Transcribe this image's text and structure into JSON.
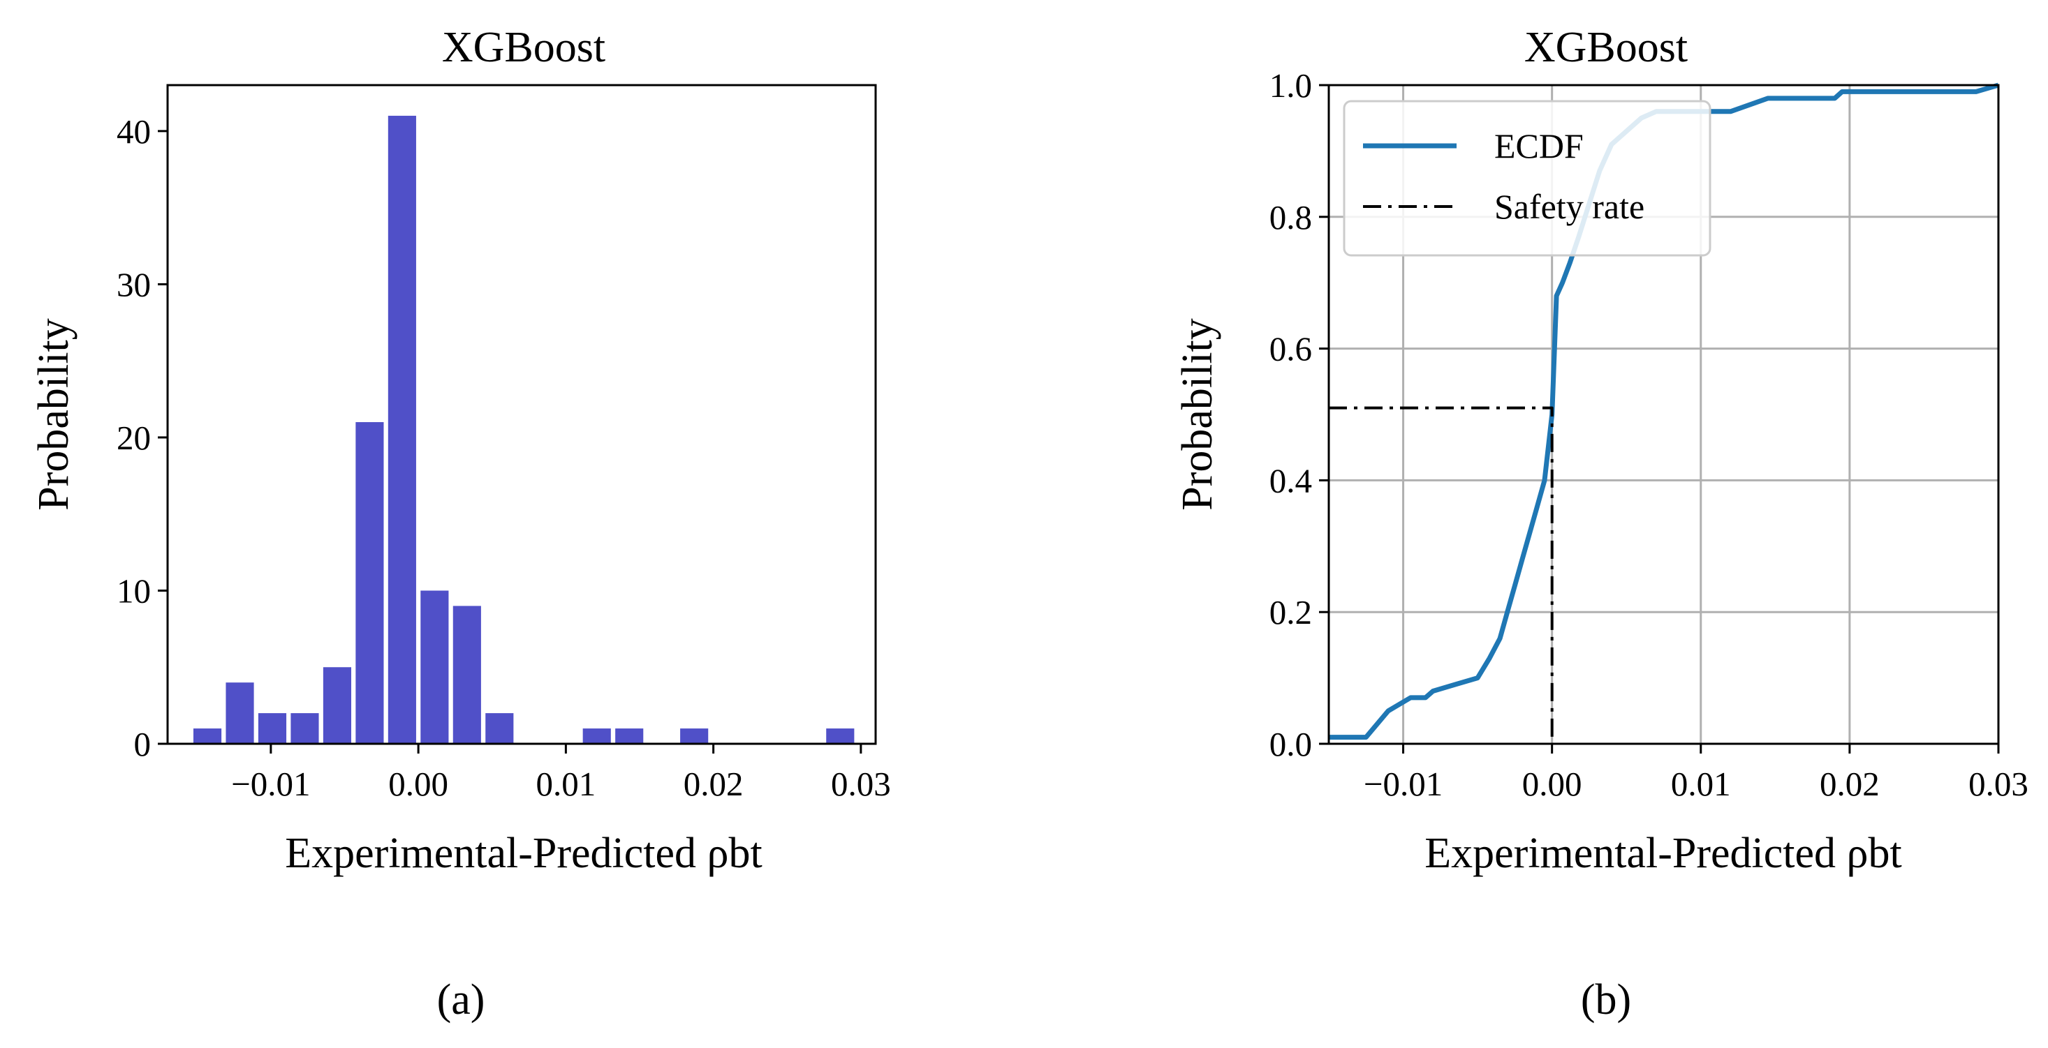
{
  "chart_data": [
    {
      "type": "bar",
      "panel_label": "(a)",
      "title": "XGBoost",
      "xlabel": "Experimental-Predicted ρbt",
      "ylabel": "Probability",
      "xlim": [
        -0.017,
        0.031
      ],
      "ylim": [
        0,
        43
      ],
      "xticks": [
        -0.01,
        0.0,
        0.01,
        0.02,
        0.03
      ],
      "xtick_labels": [
        "−0.01",
        "0.00",
        "0.01",
        "0.02",
        "0.03"
      ],
      "yticks": [
        0,
        10,
        20,
        30,
        40
      ],
      "ytick_labels": [
        "0",
        "10",
        "20",
        "30",
        "40"
      ],
      "bar_width": 0.0019,
      "bar_color": "#5050c8",
      "bins": [
        -0.0143,
        -0.0121,
        -0.0099,
        -0.0077,
        -0.0055,
        -0.0033,
        -0.0011,
        0.0011,
        0.0033,
        0.0055,
        0.0077,
        0.0121,
        0.0143,
        0.0187,
        0.0286
      ],
      "values": [
        1,
        4,
        2,
        2,
        5,
        21,
        41,
        10,
        9,
        2,
        0,
        1,
        1,
        1,
        1
      ],
      "grid": false
    },
    {
      "type": "line",
      "panel_label": "(b)",
      "title": "XGBoost",
      "xlabel": "Experimental-Predicted ρbt",
      "ylabel": "Probability",
      "xlim": [
        -0.015,
        0.03
      ],
      "ylim": [
        0,
        1.0
      ],
      "xticks": [
        -0.01,
        0.0,
        0.01,
        0.02,
        0.03
      ],
      "xtick_labels": [
        "−0.01",
        "0.00",
        "0.01",
        "0.02",
        "0.03"
      ],
      "yticks": [
        0.0,
        0.2,
        0.4,
        0.6,
        0.8,
        1.0
      ],
      "ytick_labels": [
        "0.0",
        "0.2",
        "0.4",
        "0.6",
        "0.8",
        "1.0"
      ],
      "grid": true,
      "legend_position": "upper-left",
      "series": [
        {
          "name": "ECDF",
          "color": "#1f77b4",
          "style": "solid",
          "x": [
            -0.015,
            -0.0125,
            -0.011,
            -0.0095,
            -0.0085,
            -0.008,
            -0.0065,
            -0.005,
            -0.0042,
            -0.0035,
            -0.003,
            -0.0025,
            -0.002,
            -0.0015,
            -0.001,
            -0.0005,
            0.0,
            0.0003,
            0.0007,
            0.0012,
            0.0018,
            0.0025,
            0.0032,
            0.004,
            0.005,
            0.006,
            0.007,
            0.008,
            0.0095,
            0.012,
            0.0145,
            0.019,
            0.0195,
            0.025,
            0.0285,
            0.03
          ],
          "y": [
            0.01,
            0.01,
            0.05,
            0.07,
            0.07,
            0.08,
            0.09,
            0.1,
            0.13,
            0.16,
            0.2,
            0.24,
            0.28,
            0.32,
            0.36,
            0.4,
            0.5,
            0.68,
            0.7,
            0.73,
            0.77,
            0.82,
            0.87,
            0.91,
            0.93,
            0.95,
            0.96,
            0.96,
            0.96,
            0.96,
            0.98,
            0.98,
            0.99,
            0.99,
            0.99,
            1.0
          ]
        },
        {
          "name": "Safety rate",
          "color": "#000000",
          "style": "dashdot",
          "x": [
            -0.015,
            0.0,
            0.0
          ],
          "y": [
            0.51,
            0.51,
            0.0
          ]
        }
      ]
    }
  ]
}
